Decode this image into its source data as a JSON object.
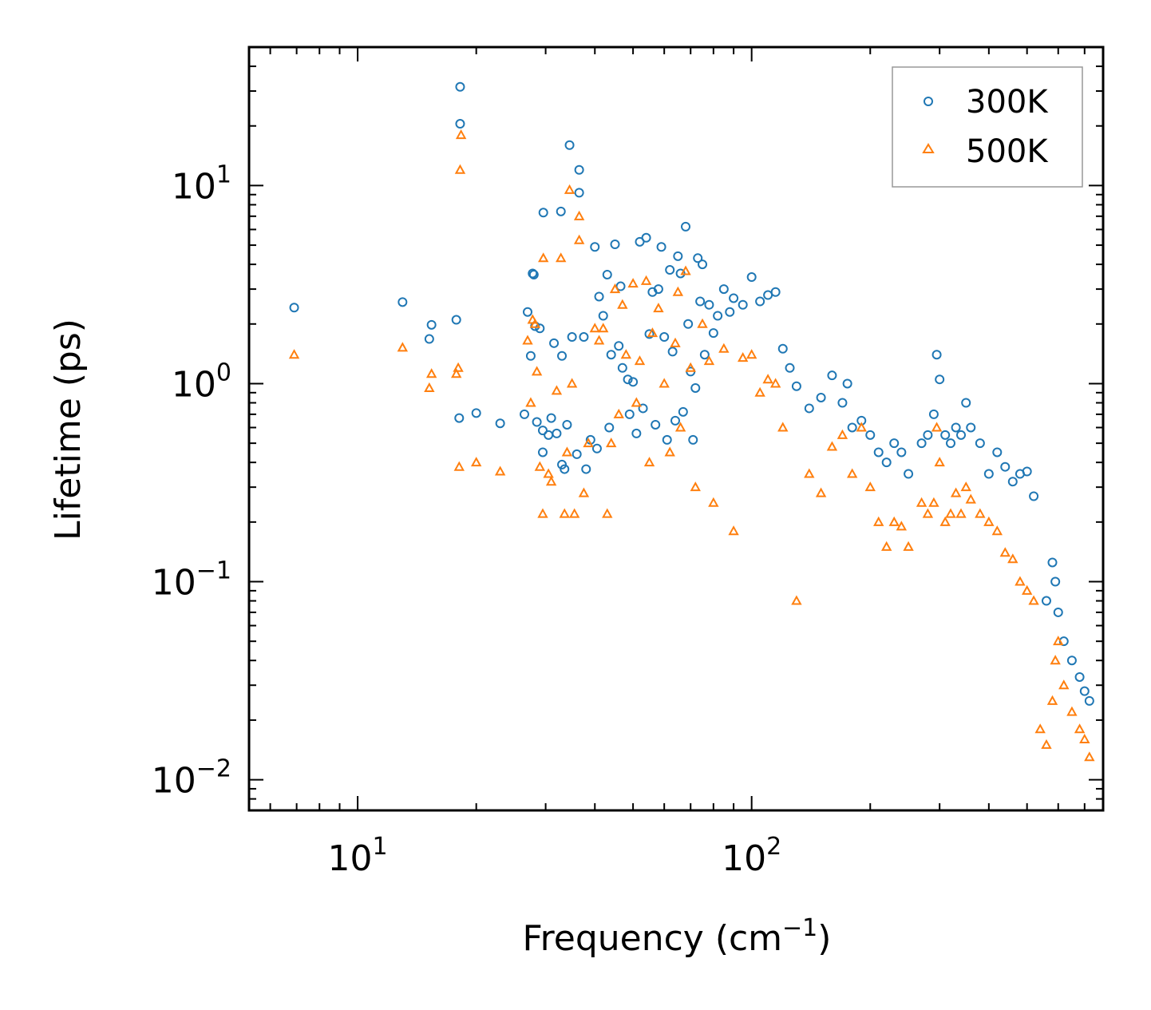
{
  "chart_data": {
    "type": "scatter",
    "xscale": "log",
    "yscale": "log",
    "xlabel": "Frequency (cm",
    "xlabel_sup": "−1",
    "xlabel_end": ")",
    "ylabel": "Lifetime (ps)",
    "xlim": [
      5.3,
      780
    ],
    "ylim": [
      0.007,
      50
    ],
    "x_ticks": [
      {
        "value": 10,
        "base": "10",
        "exp": "1"
      },
      {
        "value": 100,
        "base": "10",
        "exp": "2"
      }
    ],
    "y_ticks": [
      {
        "value": 10,
        "base": "10",
        "exp": "1"
      },
      {
        "value": 1,
        "base": "10",
        "exp": "0"
      },
      {
        "value": 0.1,
        "base": "10",
        "exp": "−1"
      },
      {
        "value": 0.01,
        "base": "10",
        "exp": "−2"
      }
    ],
    "legend_position": "top-right",
    "series": [
      {
        "name": "300K",
        "marker": "circle",
        "color": "#1f77b4",
        "points": [
          [
            6.9,
            2.42
          ],
          [
            13.0,
            2.58
          ],
          [
            15.2,
            1.68
          ],
          [
            15.4,
            1.98
          ],
          [
            17.8,
            2.1
          ],
          [
            18.1,
            0.67
          ],
          [
            18.2,
            31.5
          ],
          [
            18.2,
            20.5
          ],
          [
            20.0,
            0.71
          ],
          [
            23.0,
            0.63
          ],
          [
            26.5,
            0.7
          ],
          [
            27.0,
            2.3
          ],
          [
            27.5,
            1.38
          ],
          [
            27.8,
            3.6
          ],
          [
            28.0,
            3.55
          ],
          [
            28.2,
            1.95
          ],
          [
            28.5,
            0.64
          ],
          [
            29.0,
            1.9
          ],
          [
            29.5,
            0.58
          ],
          [
            29.5,
            0.45
          ],
          [
            29.6,
            7.3
          ],
          [
            30.5,
            0.55
          ],
          [
            31.0,
            0.67
          ],
          [
            31.5,
            1.6
          ],
          [
            32.0,
            0.56
          ],
          [
            32.8,
            7.4
          ],
          [
            33.0,
            1.38
          ],
          [
            33.0,
            0.39
          ],
          [
            33.5,
            0.37
          ],
          [
            34.0,
            0.62
          ],
          [
            34.5,
            16.0
          ],
          [
            35.0,
            1.72
          ],
          [
            36.0,
            0.44
          ],
          [
            36.5,
            12.0
          ],
          [
            36.5,
            9.2
          ],
          [
            37.5,
            1.72
          ],
          [
            38.0,
            0.37
          ],
          [
            39.0,
            0.52
          ],
          [
            40.0,
            4.9
          ],
          [
            40.5,
            0.47
          ],
          [
            41.0,
            2.75
          ],
          [
            42.0,
            2.2
          ],
          [
            43.0,
            3.55
          ],
          [
            43.5,
            0.6
          ],
          [
            44.0,
            1.4
          ],
          [
            45.0,
            5.05
          ],
          [
            46.0,
            1.55
          ],
          [
            46.5,
            3.1
          ],
          [
            47.0,
            1.2
          ],
          [
            48.5,
            1.05
          ],
          [
            49.0,
            0.7
          ],
          [
            50.0,
            1.02
          ],
          [
            51.0,
            0.56
          ],
          [
            52.0,
            5.2
          ],
          [
            53.0,
            0.75
          ],
          [
            54.0,
            5.45
          ],
          [
            55.0,
            1.78
          ],
          [
            56.0,
            2.9
          ],
          [
            57.0,
            0.62
          ],
          [
            58.0,
            3.0
          ],
          [
            59.0,
            4.9
          ],
          [
            60.0,
            1.72
          ],
          [
            61.0,
            0.52
          ],
          [
            62.0,
            3.75
          ],
          [
            63.0,
            1.45
          ],
          [
            64.0,
            0.65
          ],
          [
            65.0,
            4.4
          ],
          [
            66.0,
            3.6
          ],
          [
            67.0,
            0.72
          ],
          [
            68.0,
            6.2
          ],
          [
            69.0,
            2.0
          ],
          [
            70.0,
            1.15
          ],
          [
            71.0,
            0.52
          ],
          [
            72.0,
            0.95
          ],
          [
            73.0,
            4.3
          ],
          [
            74.0,
            2.6
          ],
          [
            75.0,
            4.0
          ],
          [
            76.0,
            1.4
          ],
          [
            78.0,
            2.5
          ],
          [
            80.0,
            1.8
          ],
          [
            82.0,
            2.2
          ],
          [
            85.0,
            3.0
          ],
          [
            88.0,
            2.3
          ],
          [
            90.0,
            2.7
          ],
          [
            95.0,
            2.5
          ],
          [
            100.0,
            3.45
          ],
          [
            105.0,
            2.6
          ],
          [
            110.0,
            2.8
          ],
          [
            115.0,
            2.9
          ],
          [
            120.0,
            1.5
          ],
          [
            125.0,
            1.2
          ],
          [
            130.0,
            0.97
          ],
          [
            140.0,
            0.75
          ],
          [
            150.0,
            0.85
          ],
          [
            160.0,
            1.1
          ],
          [
            170.0,
            0.8
          ],
          [
            175.0,
            1.0
          ],
          [
            180.0,
            0.6
          ],
          [
            190.0,
            0.65
          ],
          [
            200.0,
            0.55
          ],
          [
            210.0,
            0.45
          ],
          [
            220.0,
            0.4
          ],
          [
            230.0,
            0.5
          ],
          [
            240.0,
            0.45
          ],
          [
            250.0,
            0.35
          ],
          [
            270.0,
            0.5
          ],
          [
            280.0,
            0.55
          ],
          [
            290.0,
            0.7
          ],
          [
            295.0,
            1.4
          ],
          [
            300.0,
            1.05
          ],
          [
            310.0,
            0.55
          ],
          [
            320.0,
            0.5
          ],
          [
            330.0,
            0.6
          ],
          [
            340.0,
            0.55
          ],
          [
            350.0,
            0.8
          ],
          [
            360.0,
            0.6
          ],
          [
            380.0,
            0.5
          ],
          [
            400.0,
            0.35
          ],
          [
            420.0,
            0.45
          ],
          [
            440.0,
            0.38
          ],
          [
            460.0,
            0.32
          ],
          [
            480.0,
            0.35
          ],
          [
            500.0,
            0.36
          ],
          [
            520.0,
            0.27
          ],
          [
            560.0,
            0.08
          ],
          [
            580.0,
            0.125
          ],
          [
            590.0,
            0.1
          ],
          [
            600.0,
            0.07
          ],
          [
            620.0,
            0.05
          ],
          [
            650.0,
            0.04
          ],
          [
            680.0,
            0.033
          ],
          [
            700.0,
            0.028
          ],
          [
            720.0,
            0.025
          ]
        ]
      },
      {
        "name": "500K",
        "marker": "triangle",
        "color": "#ff7f0e",
        "points": [
          [
            6.9,
            1.4
          ],
          [
            13.0,
            1.52
          ],
          [
            15.2,
            0.95
          ],
          [
            15.4,
            1.12
          ],
          [
            17.8,
            1.12
          ],
          [
            18.0,
            1.2
          ],
          [
            18.1,
            0.38
          ],
          [
            18.2,
            12.0
          ],
          [
            18.3,
            18.0
          ],
          [
            20.0,
            0.4
          ],
          [
            23.0,
            0.36
          ],
          [
            27.0,
            1.65
          ],
          [
            27.5,
            0.8
          ],
          [
            27.8,
            2.1
          ],
          [
            28.2,
            2.0
          ],
          [
            28.5,
            1.15
          ],
          [
            29.0,
            0.38
          ],
          [
            29.5,
            0.22
          ],
          [
            29.6,
            4.3
          ],
          [
            30.5,
            0.35
          ],
          [
            31.0,
            0.32
          ],
          [
            32.0,
            0.92
          ],
          [
            32.8,
            4.3
          ],
          [
            33.5,
            0.22
          ],
          [
            34.0,
            0.45
          ],
          [
            34.5,
            9.5
          ],
          [
            35.0,
            1.0
          ],
          [
            35.5,
            0.22
          ],
          [
            36.5,
            7.0
          ],
          [
            36.5,
            5.3
          ],
          [
            37.5,
            0.28
          ],
          [
            38.5,
            0.5
          ],
          [
            40.0,
            1.9
          ],
          [
            41.0,
            1.65
          ],
          [
            42.0,
            1.9
          ],
          [
            43.0,
            0.22
          ],
          [
            44.0,
            0.5
          ],
          [
            45.0,
            3.0
          ],
          [
            46.0,
            0.7
          ],
          [
            47.0,
            2.5
          ],
          [
            48.0,
            1.4
          ],
          [
            50.0,
            3.2
          ],
          [
            51.0,
            0.8
          ],
          [
            52.0,
            1.3
          ],
          [
            54.0,
            3.3
          ],
          [
            55.0,
            0.4
          ],
          [
            56.0,
            1.8
          ],
          [
            58.0,
            2.4
          ],
          [
            60.0,
            1.0
          ],
          [
            62.0,
            0.45
          ],
          [
            64.0,
            1.6
          ],
          [
            65.0,
            2.9
          ],
          [
            66.0,
            0.6
          ],
          [
            68.0,
            3.7
          ],
          [
            70.0,
            1.2
          ],
          [
            72.0,
            0.3
          ],
          [
            75.0,
            2.0
          ],
          [
            78.0,
            1.3
          ],
          [
            80.0,
            0.25
          ],
          [
            85.0,
            1.5
          ],
          [
            90.0,
            0.18
          ],
          [
            95.0,
            1.35
          ],
          [
            100.0,
            1.4
          ],
          [
            105.0,
            0.9
          ],
          [
            110.0,
            1.05
          ],
          [
            115.0,
            1.0
          ],
          [
            120.0,
            0.6
          ],
          [
            130.0,
            0.08
          ],
          [
            140.0,
            0.35
          ],
          [
            150.0,
            0.28
          ],
          [
            160.0,
            0.48
          ],
          [
            170.0,
            0.55
          ],
          [
            180.0,
            0.35
          ],
          [
            190.0,
            0.6
          ],
          [
            200.0,
            0.3
          ],
          [
            210.0,
            0.2
          ],
          [
            220.0,
            0.15
          ],
          [
            230.0,
            0.2
          ],
          [
            240.0,
            0.19
          ],
          [
            250.0,
            0.15
          ],
          [
            270.0,
            0.25
          ],
          [
            280.0,
            0.22
          ],
          [
            290.0,
            0.25
          ],
          [
            295.0,
            0.6
          ],
          [
            300.0,
            0.4
          ],
          [
            310.0,
            0.2
          ],
          [
            320.0,
            0.22
          ],
          [
            330.0,
            0.28
          ],
          [
            340.0,
            0.22
          ],
          [
            350.0,
            0.3
          ],
          [
            360.0,
            0.26
          ],
          [
            380.0,
            0.22
          ],
          [
            400.0,
            0.2
          ],
          [
            420.0,
            0.18
          ],
          [
            440.0,
            0.14
          ],
          [
            460.0,
            0.13
          ],
          [
            480.0,
            0.1
          ],
          [
            500.0,
            0.09
          ],
          [
            520.0,
            0.08
          ],
          [
            540.0,
            0.018
          ],
          [
            560.0,
            0.015
          ],
          [
            580.0,
            0.025
          ],
          [
            590.0,
            0.04
          ],
          [
            600.0,
            0.05
          ],
          [
            620.0,
            0.03
          ],
          [
            650.0,
            0.022
          ],
          [
            680.0,
            0.018
          ],
          [
            700.0,
            0.016
          ],
          [
            720.0,
            0.013
          ]
        ]
      }
    ]
  }
}
